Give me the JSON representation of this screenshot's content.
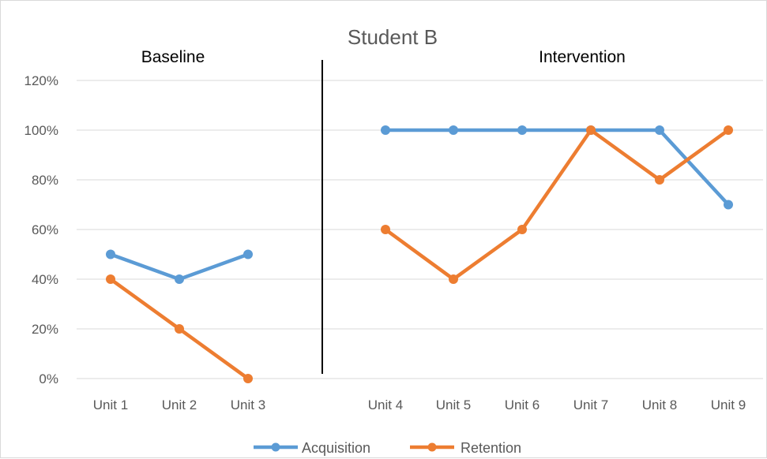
{
  "chart_data": {
    "type": "line",
    "title": "Student B",
    "phases": [
      {
        "label": "Baseline",
        "categories": [
          "Unit 1",
          "Unit 2",
          "Unit 3"
        ]
      },
      {
        "label": "Intervention",
        "categories": [
          "Unit 4",
          "Unit 5",
          "Unit 6",
          "Unit 7",
          "Unit 8",
          "Unit 9"
        ]
      }
    ],
    "categories": [
      "Unit 1",
      "Unit 2",
      "Unit 3",
      "Unit 4",
      "Unit 5",
      "Unit 6",
      "Unit 7",
      "Unit 8",
      "Unit 9"
    ],
    "series": [
      {
        "name": "Acquisition",
        "color": "#5B9BD5",
        "values": [
          50,
          40,
          50,
          100,
          100,
          100,
          100,
          100,
          70
        ]
      },
      {
        "name": "Retention",
        "color": "#ED7D31",
        "values": [
          40,
          20,
          0,
          60,
          40,
          60,
          100,
          80,
          100
        ]
      }
    ],
    "y_ticks": [
      "0%",
      "20%",
      "40%",
      "60%",
      "80%",
      "100%",
      "120%"
    ],
    "ylim": [
      0,
      120
    ],
    "y_unit": "%",
    "grid": true,
    "legend": "bottom",
    "phase_divider": true
  }
}
